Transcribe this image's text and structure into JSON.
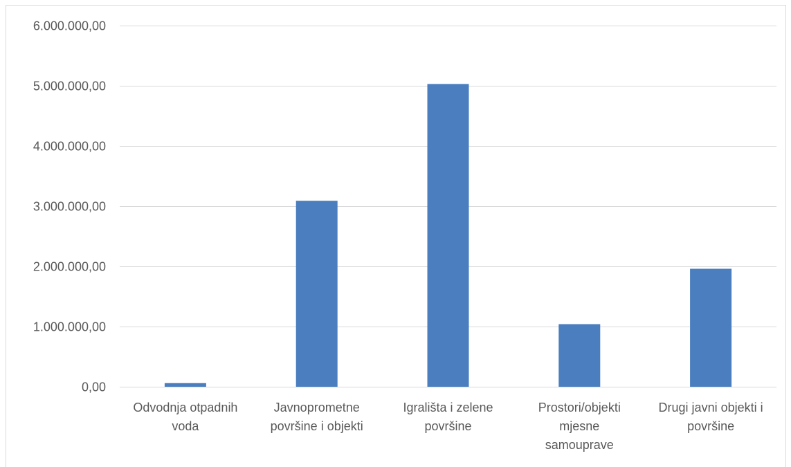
{
  "chart_data": {
    "type": "bar",
    "title": "",
    "xlabel": "",
    "ylabel": "",
    "categories": [
      "Odvodnja otpadnih voda",
      "Javnoprometne površine i objekti",
      "Igrališta i zelene površine",
      "Prostori/objekti mjesne samouprave",
      "Drugi javni objekti i površine"
    ],
    "category_label_lines": [
      [
        "Odvodnja otpadnih",
        "voda"
      ],
      [
        "Javnoprometne",
        "površine i objekti"
      ],
      [
        "Igrališta i zelene",
        "površine"
      ],
      [
        "Prostori/objekti",
        "mjesne",
        "samouprave"
      ],
      [
        "Drugi javni objekti i",
        "površine"
      ]
    ],
    "values": [
      60000,
      3090000,
      5030000,
      1040000,
      1960000
    ],
    "ylim": [
      0,
      6000000
    ],
    "yticks": [
      0,
      1000000,
      2000000,
      3000000,
      4000000,
      5000000,
      6000000
    ],
    "ytick_labels": [
      "0,00",
      "1.000.000,00",
      "2.000.000,00",
      "3.000.000,00",
      "4.000.000,00",
      "5.000.000,00",
      "6.000.000,00"
    ],
    "grid": true,
    "legend": "none",
    "bar_color": "#4a7ebf"
  }
}
